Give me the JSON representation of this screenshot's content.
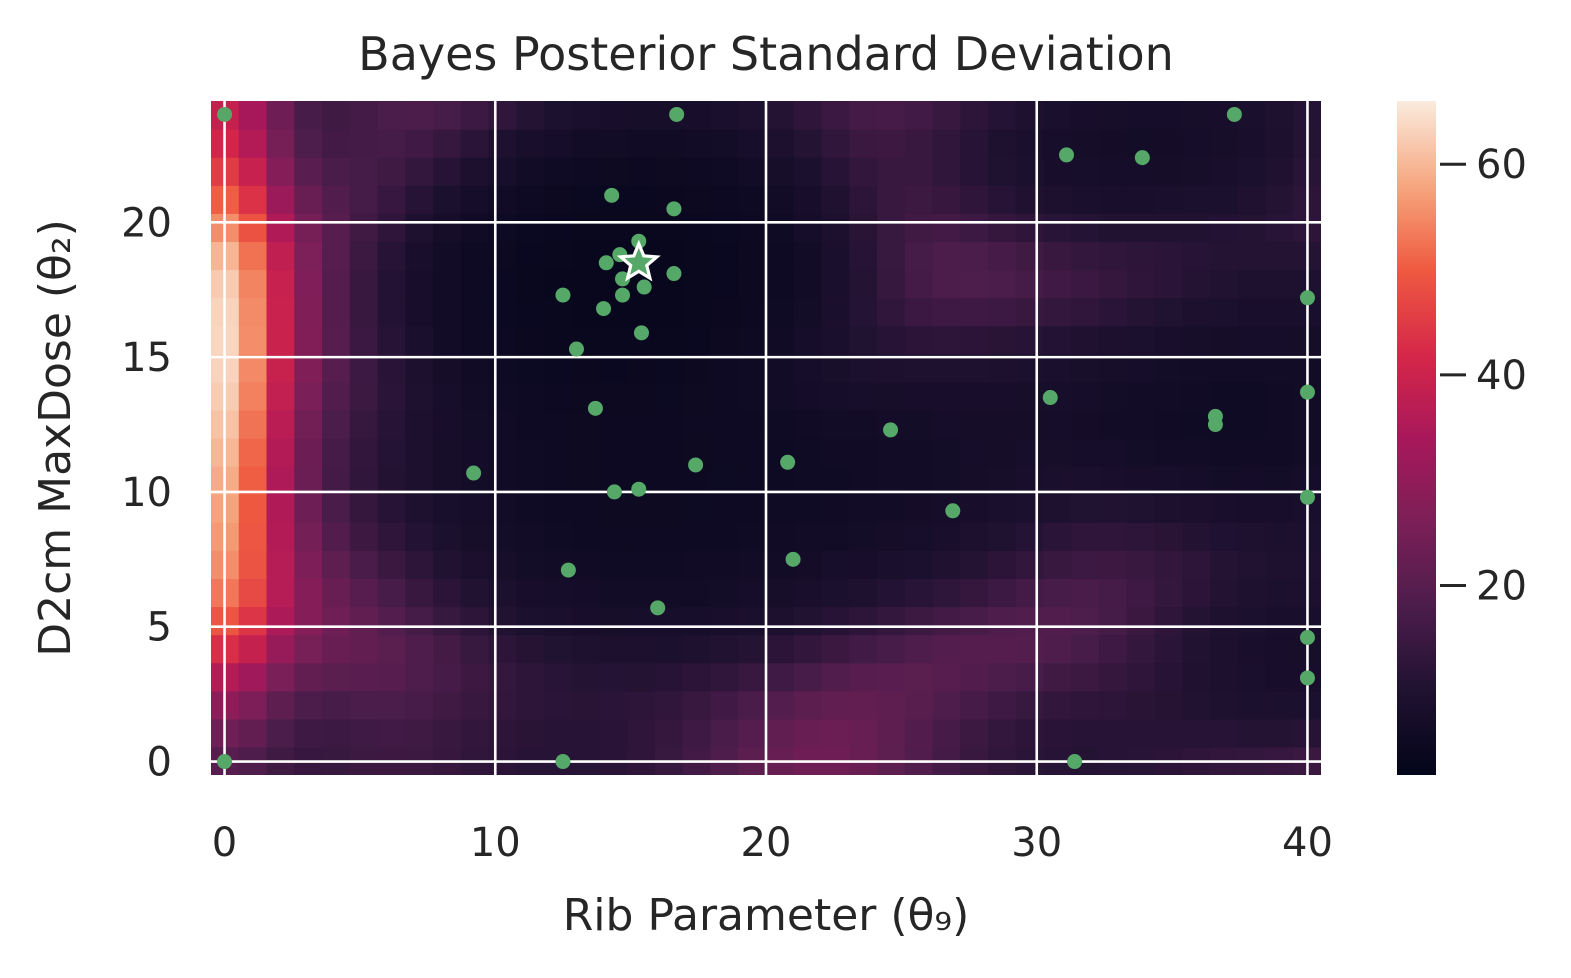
{
  "chart_data": {
    "type": "heatmap",
    "title": "Bayes Posterior Standard Deviation",
    "xlabel": "Rib Parameter (θ₉)",
    "ylabel": "D2cm MaxDose (θ₂)",
    "xlim": [
      -0.5,
      40.5
    ],
    "ylim": [
      -0.5,
      24.5
    ],
    "xticks": [
      0,
      10,
      20,
      30,
      40
    ],
    "yticks": [
      0,
      5,
      10,
      15,
      20
    ],
    "grid": true,
    "colorbar": {
      "range": [
        2,
        66
      ],
      "ticks": [
        20,
        40,
        60
      ],
      "colormap": "rocket"
    },
    "observations": {
      "color": "#55a868",
      "points": [
        [
          0,
          24
        ],
        [
          16.7,
          24
        ],
        [
          37.3,
          24
        ],
        [
          31.1,
          22.5
        ],
        [
          33.9,
          22.4
        ],
        [
          14.3,
          21
        ],
        [
          16.6,
          20.5
        ],
        [
          15.3,
          19.3
        ],
        [
          14.6,
          18.8
        ],
        [
          14.1,
          18.5
        ],
        [
          16.6,
          18.1
        ],
        [
          14.7,
          17.9
        ],
        [
          15.5,
          17.6
        ],
        [
          14.7,
          17.3
        ],
        [
          12.5,
          17.3
        ],
        [
          14.0,
          16.8
        ],
        [
          15.4,
          15.9
        ],
        [
          13.0,
          15.3
        ],
        [
          40,
          17.2
        ],
        [
          40,
          13.7
        ],
        [
          13.7,
          13.1
        ],
        [
          30.5,
          13.5
        ],
        [
          36.6,
          12.8
        ],
        [
          36.6,
          12.5
        ],
        [
          24.6,
          12.3
        ],
        [
          9.2,
          10.7
        ],
        [
          17.4,
          11
        ],
        [
          20.8,
          11.1
        ],
        [
          14.4,
          10
        ],
        [
          15.3,
          10.1
        ],
        [
          40,
          9.8
        ],
        [
          26.9,
          9.3
        ],
        [
          12.7,
          7.1
        ],
        [
          21.0,
          7.5
        ],
        [
          16.0,
          5.7
        ],
        [
          40,
          4.6
        ],
        [
          40,
          3.1
        ],
        [
          0,
          0
        ],
        [
          12.5,
          0
        ],
        [
          31.4,
          0
        ]
      ]
    },
    "best_point": [
      15.3,
      18.5
    ]
  }
}
